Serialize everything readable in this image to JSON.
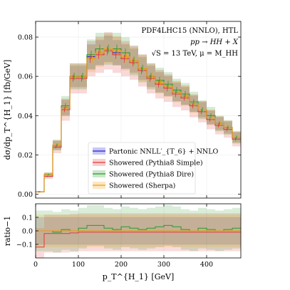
{
  "colors": {
    "partonic": "#2020d8",
    "pythia_simple": "#e23a3a",
    "pythia_dire": "#2b9a2b",
    "sherpa": "#f2a012"
  },
  "chart_data": {
    "type": "line",
    "annotations": [
      "PDF4LHC15 (NNLO), HTL",
      "pp → HH + X",
      "√S = 13 TeV, μ = M_HH"
    ],
    "xlabel": "p_T^{H_1} [GeV]",
    "ylabel_top": "dσ/dp_T^{H_1} [fb/GeV]",
    "ylabel_bottom": "ratio−1",
    "xlim": [
      0,
      480
    ],
    "ylim_top": [
      -0.002,
      0.088
    ],
    "ylim_bottom": [
      -0.2,
      0.2
    ],
    "x_ticks": [
      "0",
      "100",
      "200",
      "300",
      "400"
    ],
    "x_tick_values": [
      0,
      100,
      200,
      300,
      400
    ],
    "y_ticks_top": [
      "0.00",
      "0.02",
      "0.04",
      "0.06",
      "0.08"
    ],
    "y_tick_values_top": [
      0,
      0.02,
      0.04,
      0.06,
      0.08
    ],
    "y_ticks_bottom": [
      "−0.1",
      "0.0",
      "0.1"
    ],
    "y_tick_values_bottom": [
      -0.1,
      0,
      0.1
    ],
    "legend_position": "lower-center",
    "bin_edges": [
      0,
      20,
      40,
      60,
      80,
      100,
      120,
      140,
      160,
      180,
      200,
      220,
      240,
      260,
      280,
      300,
      320,
      340,
      360,
      380,
      400,
      420,
      440,
      460,
      480
    ],
    "series": [
      {
        "name": "Partonic NNLL′_{T_6} + NNLO",
        "color": "partonic",
        "values": [
          0.0012,
          0.01,
          0.025,
          0.044,
          0.06,
          0.06,
          0.07,
          0.072,
          0.074,
          0.072,
          0.07,
          0.068,
          0.064,
          0.06,
          0.057,
          0.055,
          0.052,
          0.05,
          0.046,
          0.043,
          0.039,
          0.036,
          0.034,
          0.029
        ],
        "band": 0.09,
        "ratio_band": 0.1
      },
      {
        "name": "Showered (Pythia8 Simple)",
        "color": "pythia_simple",
        "values": [
          0.0012,
          0.009,
          0.024,
          0.043,
          0.059,
          0.059,
          0.069,
          0.071,
          0.073,
          0.071,
          0.069,
          0.067,
          0.063,
          0.059,
          0.056,
          0.054,
          0.051,
          0.049,
          0.045,
          0.042,
          0.038,
          0.035,
          0.033,
          0.028
        ],
        "band": 0.13,
        "ratio": [
          -0.12,
          -0.02,
          -0.02,
          -0.02,
          -0.015,
          -0.01,
          -0.01,
          -0.01,
          -0.01,
          -0.01,
          -0.01,
          -0.01,
          -0.01,
          -0.01,
          -0.01,
          -0.01,
          -0.01,
          -0.01,
          -0.01,
          -0.01,
          -0.01,
          -0.01,
          -0.01,
          -0.01
        ],
        "ratio_band": 0.14
      },
      {
        "name": "Showered (Pythia8 Dire)",
        "color": "pythia_dire",
        "values": [
          0.0012,
          0.01,
          0.025,
          0.045,
          0.06,
          0.06,
          0.071,
          0.074,
          0.074,
          0.074,
          0.072,
          0.068,
          0.064,
          0.06,
          0.058,
          0.056,
          0.053,
          0.051,
          0.047,
          0.043,
          0.04,
          0.036,
          0.034,
          0.029
        ],
        "band": 0.11,
        "ratio": [
          0.0,
          0.0,
          -0.01,
          0.01,
          0.0,
          0.02,
          0.04,
          0.04,
          0.02,
          0.01,
          0.03,
          0.02,
          0.01,
          0.02,
          0.03,
          0.04,
          0.03,
          0.01,
          0.0,
          0.02,
          0.01,
          0.0,
          0.01,
          0.02
        ],
        "ratio_band": 0.15
      },
      {
        "name": "Showered (Sherpa)",
        "color": "sherpa",
        "values": [
          0.0012,
          0.01,
          0.025,
          0.044,
          0.06,
          0.06,
          0.069,
          0.072,
          0.074,
          0.073,
          0.07,
          0.068,
          0.064,
          0.06,
          0.057,
          0.055,
          0.052,
          0.05,
          0.046,
          0.043,
          0.039,
          0.036,
          0.034,
          0.029
        ],
        "band": 0.1,
        "ratio": [
          0.0,
          0.0,
          0.0,
          0.0,
          0.0,
          0.0,
          0.0,
          0.0,
          0.0,
          0.0,
          0.0,
          0.0,
          0.0,
          0.0,
          0.0,
          0.0,
          0.0,
          0.0,
          0.0,
          0.0,
          0.0,
          0.0,
          0.0,
          0.0
        ],
        "ratio_band": 0.12
      }
    ]
  }
}
